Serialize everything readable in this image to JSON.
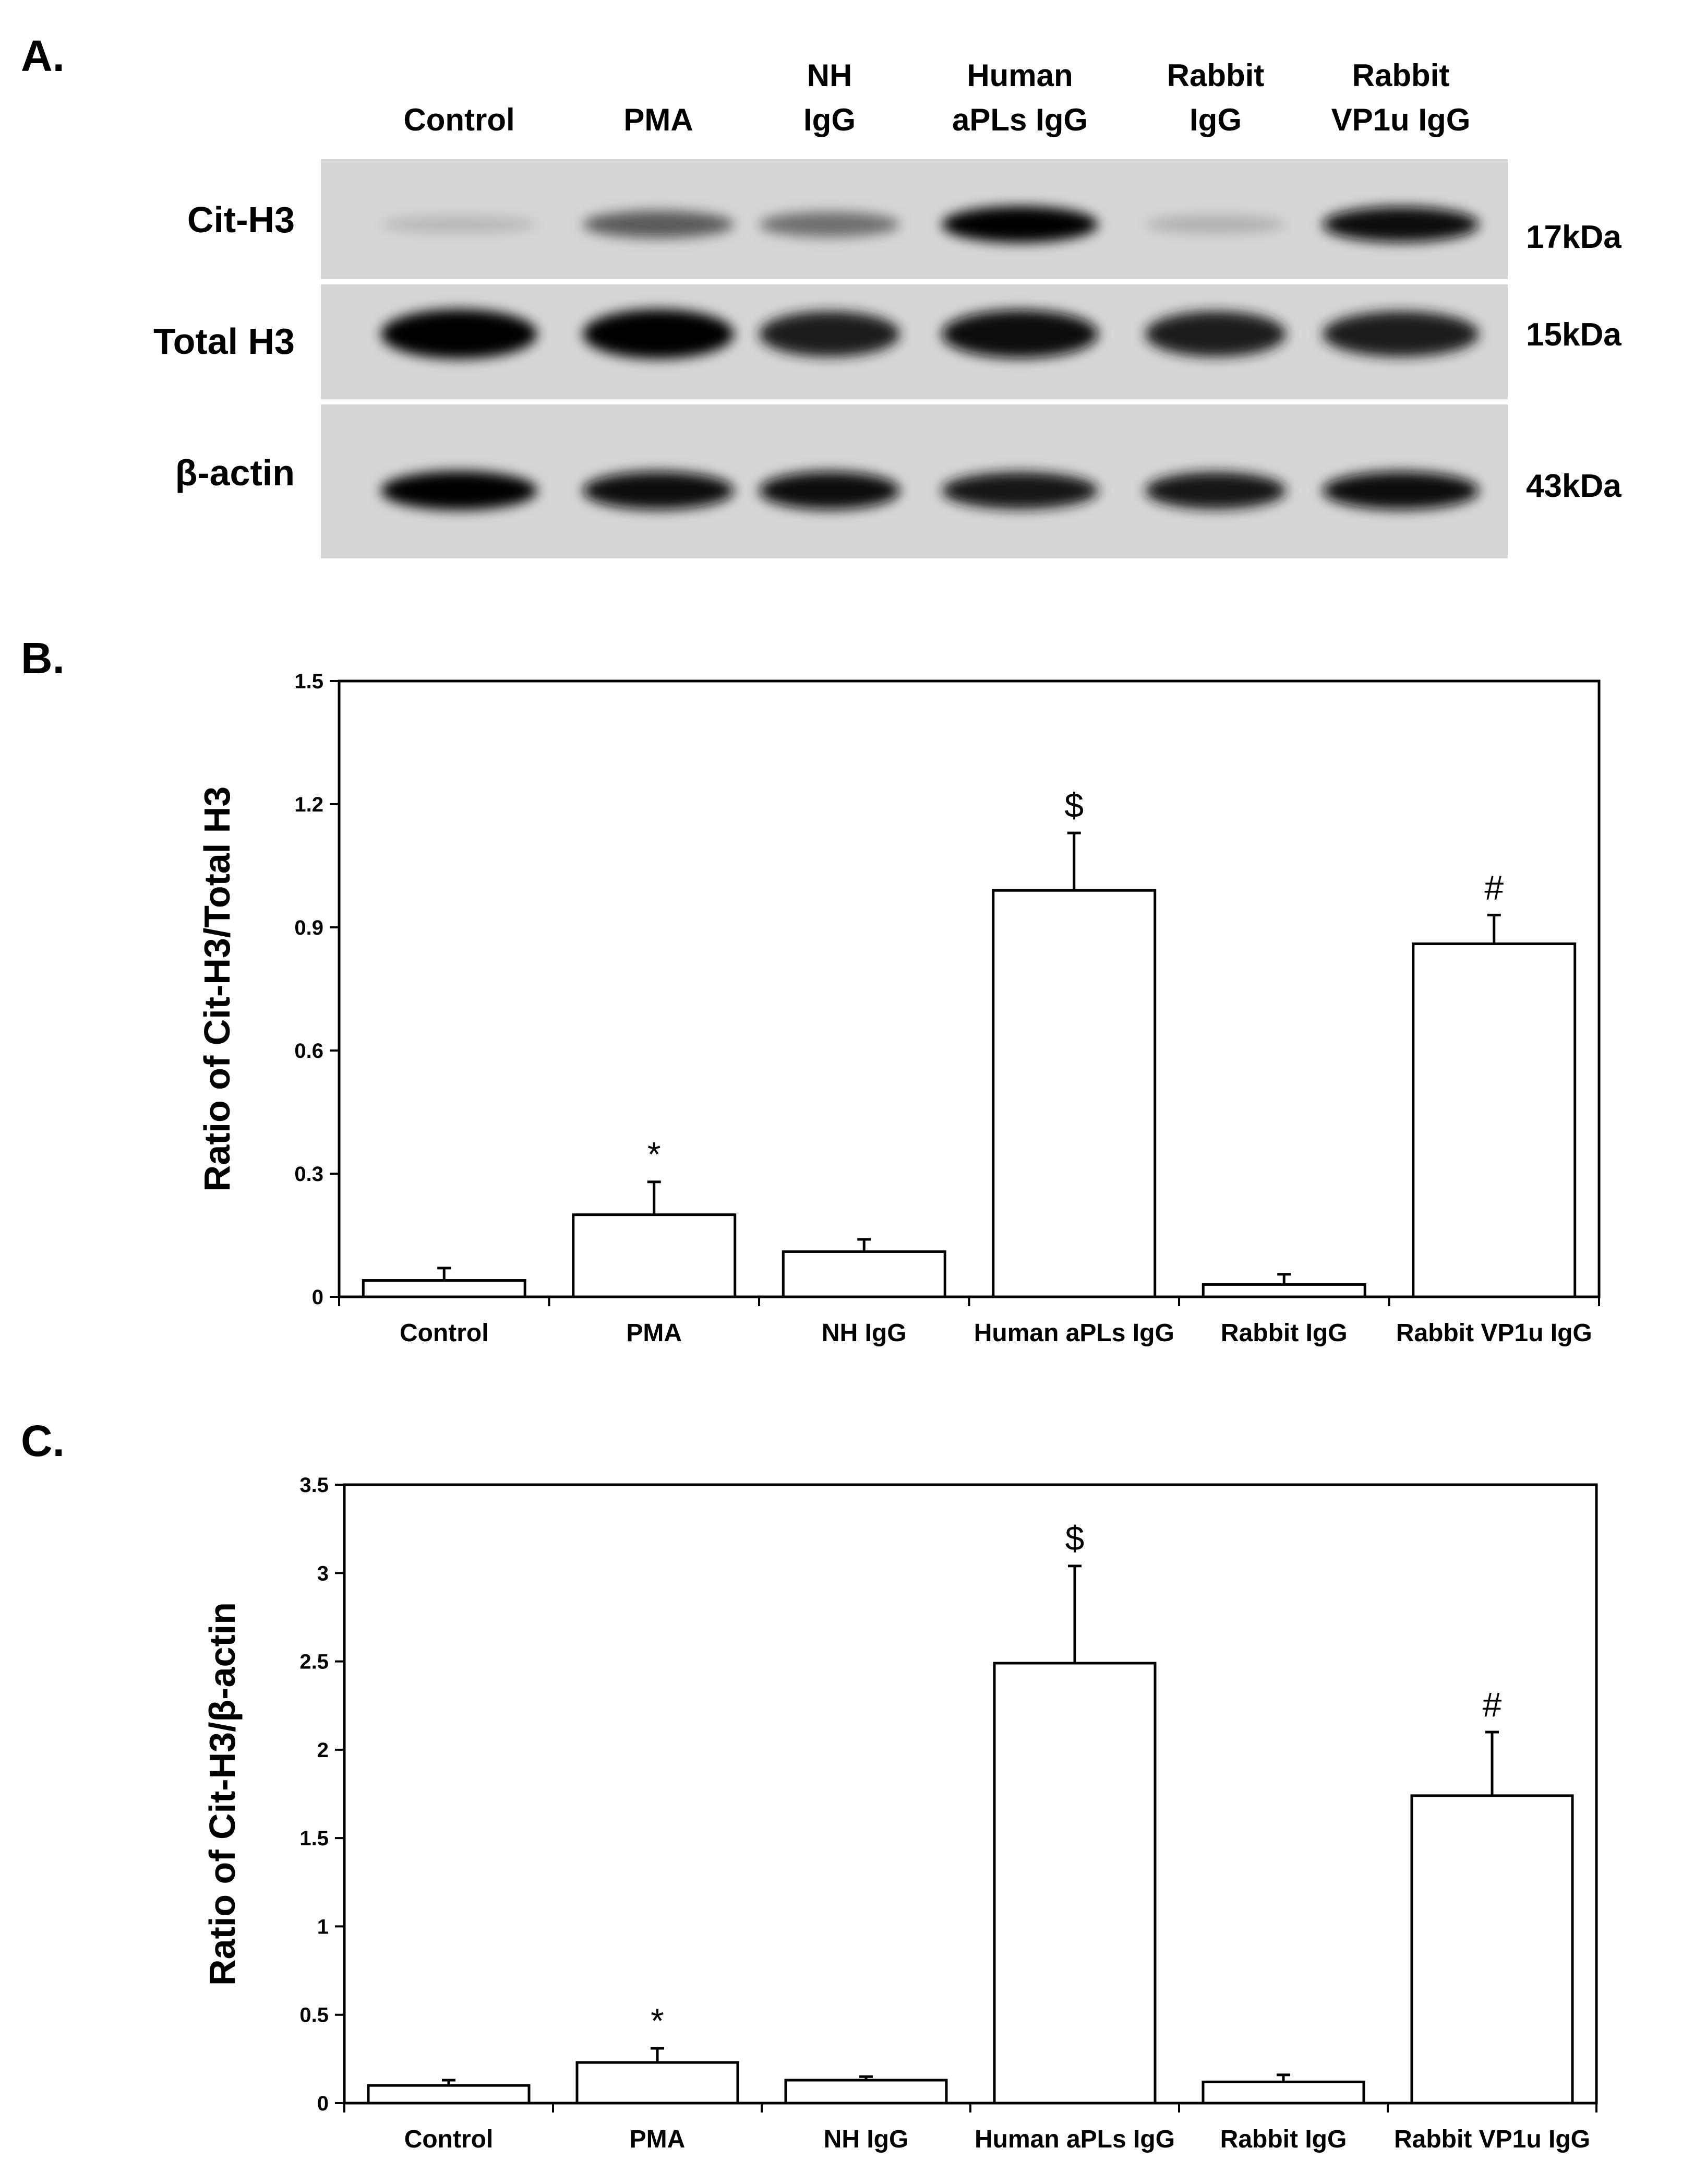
{
  "blot": {
    "panel_letter": "A.",
    "lanes": [
      [
        "Control"
      ],
      [
        "PMA"
      ],
      [
        "NH",
        "IgG"
      ],
      [
        "Human",
        "aPLs  IgG"
      ],
      [
        "Rabbit",
        "IgG"
      ],
      [
        "Rabbit",
        "VP1u IgG"
      ]
    ],
    "rows": [
      {
        "label": "Cit-H3",
        "mw": "17kDa",
        "intensity": [
          0.08,
          0.55,
          0.45,
          1.0,
          0.12,
          0.95
        ]
      },
      {
        "label": "Total H3",
        "mw": "15kDa",
        "intensity": [
          1.0,
          1.0,
          0.85,
          0.95,
          0.85,
          0.85
        ]
      },
      {
        "label": "β-actin",
        "mw": "43kDa",
        "intensity": [
          1.0,
          0.95,
          0.95,
          0.9,
          0.9,
          0.95
        ]
      }
    ]
  },
  "chart_data": [
    {
      "panel_letter": "B.",
      "type": "bar",
      "categories": [
        "Control",
        "PMA",
        "NH IgG",
        "Human aPLs IgG",
        "Rabbit IgG",
        "Rabbit VP1u IgG"
      ],
      "values": [
        0.04,
        0.2,
        0.11,
        0.99,
        0.03,
        0.86
      ],
      "errors": [
        0.03,
        0.08,
        0.03,
        0.14,
        0.025,
        0.07
      ],
      "significance": [
        "",
        "*",
        "",
        "$",
        "",
        "#"
      ],
      "ylabel": "Ratio of Cit-H3/Total H3",
      "ylim": [
        0,
        1.5
      ],
      "yticks": [
        0,
        0.3,
        0.6,
        0.9,
        1.2,
        1.5
      ],
      "ytick_labels": [
        "0",
        "0.3",
        "0.6",
        "0.9",
        "1.2",
        "1.5"
      ]
    },
    {
      "panel_letter": "C.",
      "type": "bar",
      "categories": [
        "Control",
        "PMA",
        "NH IgG",
        "Human aPLs IgG",
        "Rabbit IgG",
        "Rabbit VP1u IgG"
      ],
      "values": [
        0.1,
        0.23,
        0.13,
        2.49,
        0.12,
        1.74
      ],
      "errors": [
        0.03,
        0.08,
        0.02,
        0.55,
        0.04,
        0.36
      ],
      "significance": [
        "",
        "*",
        "",
        "$",
        "",
        "#"
      ],
      "ylabel": "Ratio of Cit-H3/β-actin",
      "ylim": [
        0,
        3.5
      ],
      "yticks": [
        0,
        0.5,
        1,
        1.5,
        2,
        2.5,
        3,
        3.5
      ],
      "ytick_labels": [
        "0",
        "0.5",
        "1",
        "1.5",
        "2",
        "2.5",
        "3",
        "3.5"
      ]
    }
  ]
}
